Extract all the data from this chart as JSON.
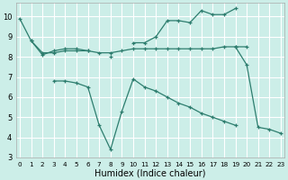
{
  "xlabel": "Humidex (Indice chaleur)",
  "bg_color": "#cceee8",
  "grid_color": "#ffffff",
  "line_color": "#2d7d6e",
  "line1": {
    "x": [
      0,
      1,
      2,
      3,
      4,
      5,
      6,
      7,
      8,
      9,
      10,
      11,
      12,
      13,
      14,
      15,
      16,
      17,
      18,
      19,
      20,
      21,
      22,
      23
    ],
    "y": [
      9.9,
      8.8,
      8.1,
      8.3,
      8.4,
      8.4,
      8.3,
      null,
      8.0,
      null,
      8.7,
      8.7,
      9.0,
      9.8,
      9.8,
      9.7,
      10.3,
      10.1,
      10.1,
      10.4,
      null,
      null,
      null,
      null
    ]
  },
  "line2": {
    "x": [
      1,
      2,
      3,
      4,
      5,
      6,
      7,
      8,
      9,
      10,
      11,
      12,
      13,
      14,
      15,
      16,
      17,
      18,
      19,
      20
    ],
    "y": [
      8.8,
      8.2,
      8.2,
      8.3,
      8.3,
      8.3,
      8.2,
      8.2,
      8.3,
      8.4,
      8.4,
      8.4,
      8.4,
      8.4,
      8.4,
      8.4,
      8.4,
      8.5,
      8.5,
      8.5
    ]
  },
  "line3": {
    "x": [
      3,
      4,
      5,
      6,
      7,
      8,
      9,
      10,
      11,
      12,
      13,
      14,
      15,
      16,
      17,
      18,
      19,
      20,
      21,
      22,
      23
    ],
    "y": [
      6.8,
      6.8,
      6.7,
      6.5,
      4.6,
      3.4,
      5.3,
      6.9,
      6.5,
      6.3,
      6.0,
      5.7,
      5.5,
      5.2,
      5.0,
      4.8,
      4.6,
      null,
      null,
      null,
      null
    ]
  },
  "line4": {
    "x": [
      19,
      20,
      21,
      22,
      23
    ],
    "y": [
      8.5,
      7.6,
      4.5,
      4.4,
      4.2
    ]
  },
  "xlim": [
    -0.3,
    23.3
  ],
  "ylim": [
    3.0,
    10.7
  ],
  "yticks": [
    3,
    4,
    5,
    6,
    7,
    8,
    9,
    10
  ],
  "xticks": [
    0,
    1,
    2,
    3,
    4,
    5,
    6,
    7,
    8,
    9,
    10,
    11,
    12,
    13,
    14,
    15,
    16,
    17,
    18,
    19,
    20,
    21,
    22,
    23
  ]
}
